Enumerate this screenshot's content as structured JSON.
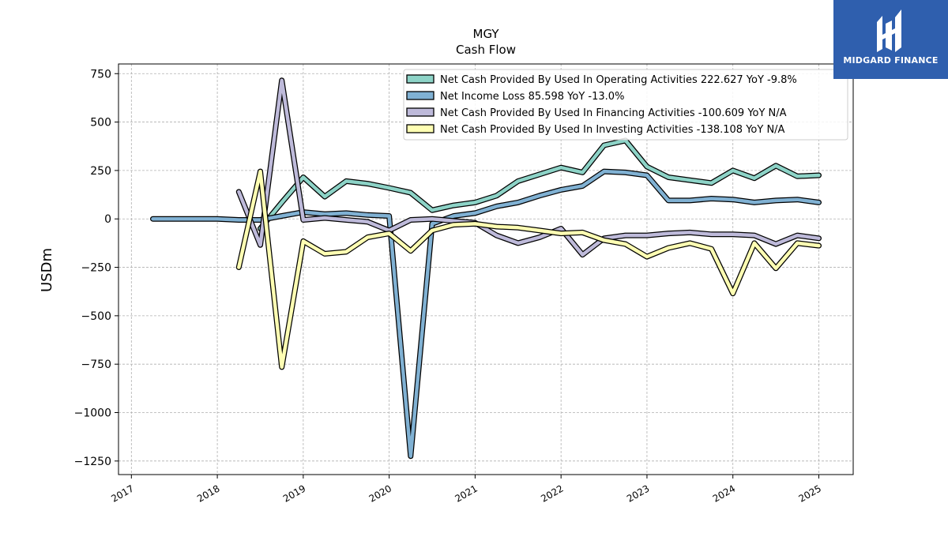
{
  "logo": {
    "text": "MIDGARD FINANCE"
  },
  "chart_data": {
    "type": "line",
    "title": "MGY",
    "subtitle": "Cash Flow",
    "xlabel": "",
    "ylabel": "USDm",
    "xlim": [
      2016.85,
      2025.4
    ],
    "ylim": [
      -1320,
      800
    ],
    "yticks": [
      750,
      500,
      250,
      0,
      -250,
      -500,
      -750,
      -1000,
      -1250
    ],
    "ytick_labels": [
      "750",
      "500",
      "250",
      "0",
      "−250",
      "−500",
      "−750",
      "−1000",
      "−1250"
    ],
    "xticks": [
      2017,
      2018,
      2019,
      2020,
      2021,
      2022,
      2023,
      2024,
      2025
    ],
    "xtick_labels": [
      "2017",
      "2018",
      "2019",
      "2020",
      "2021",
      "2022",
      "2023",
      "2024",
      "2025"
    ],
    "grid": true,
    "legend_position": "top-right",
    "series": [
      {
        "name": "Net Cash Provided By Used In Operating Activities  222.627 YoY -9.8%",
        "color": "#8dd3c7",
        "x": [
          2018.5,
          2018.75,
          2019.0,
          2019.25,
          2019.5,
          2019.75,
          2020.0,
          2020.25,
          2020.5,
          2020.75,
          2021.0,
          2021.25,
          2021.5,
          2021.75,
          2022.0,
          2022.25,
          2022.5,
          2022.75,
          2023.0,
          2023.25,
          2023.5,
          2023.75,
          2024.0,
          2024.25,
          2024.5,
          2024.75,
          2025.0
        ],
        "values": [
          -50,
          85,
          215,
          115,
          195,
          182,
          160,
          135,
          45,
          70,
          85,
          120,
          195,
          230,
          265,
          240,
          380,
          405,
          270,
          215,
          200,
          185,
          250,
          210,
          275,
          220,
          225
        ]
      },
      {
        "name": "Net Income Loss  85.598 YoY -13.0%",
        "color": "#80b1d3",
        "x": [
          2017.25,
          2017.5,
          2017.75,
          2018.0,
          2018.25,
          2018.5,
          2018.75,
          2019.0,
          2019.25,
          2019.5,
          2019.75,
          2020.0,
          2020.25,
          2020.5,
          2020.75,
          2021.0,
          2021.25,
          2021.5,
          2021.75,
          2022.0,
          2022.25,
          2022.5,
          2022.75,
          2023.0,
          2023.25,
          2023.5,
          2023.75,
          2024.0,
          2024.25,
          2024.5,
          2024.75,
          2025.0
        ],
        "values": [
          0,
          0,
          0,
          0,
          -5,
          -5,
          15,
          35,
          25,
          30,
          20,
          15,
          -1225,
          -25,
          15,
          30,
          65,
          85,
          120,
          150,
          170,
          245,
          240,
          225,
          95,
          95,
          105,
          100,
          85,
          95,
          100,
          85
        ]
      },
      {
        "name": "Net Cash Provided By Used In Financing Activities  -100.609 YoY N/A",
        "color": "#bebada",
        "x": [
          2018.25,
          2018.5,
          2018.75,
          2019.0,
          2019.25,
          2019.5,
          2019.75,
          2020.0,
          2020.25,
          2020.5,
          2020.75,
          2021.0,
          2021.25,
          2021.5,
          2021.75,
          2022.0,
          2022.25,
          2022.5,
          2022.75,
          2023.0,
          2023.25,
          2023.5,
          2023.75,
          2024.0,
          2024.25,
          2024.5,
          2024.75,
          2025.0
        ],
        "values": [
          140,
          -135,
          715,
          -5,
          5,
          -5,
          -15,
          -60,
          -5,
          0,
          -10,
          -20,
          -85,
          -125,
          -95,
          -50,
          -185,
          -100,
          -85,
          -85,
          -75,
          -70,
          -80,
          -80,
          -85,
          -130,
          -85,
          -100
        ]
      },
      {
        "name": "Net Cash Provided By Used In Investing Activities  -138.108 YoY N/A",
        "color": "#ffffb3",
        "x": [
          2018.25,
          2018.5,
          2018.75,
          2019.0,
          2019.25,
          2019.5,
          2019.75,
          2020.0,
          2020.25,
          2020.5,
          2020.75,
          2021.0,
          2021.25,
          2021.5,
          2021.75,
          2022.0,
          2022.25,
          2022.5,
          2022.75,
          2023.0,
          2023.25,
          2023.5,
          2023.75,
          2024.0,
          2024.25,
          2024.5,
          2024.75,
          2025.0
        ],
        "values": [
          -250,
          245,
          -765,
          -115,
          -180,
          -170,
          -95,
          -75,
          -165,
          -60,
          -30,
          -25,
          -40,
          -45,
          -60,
          -75,
          -70,
          -110,
          -130,
          -195,
          -150,
          -125,
          -155,
          -385,
          -125,
          -255,
          -125,
          -138
        ]
      }
    ]
  }
}
